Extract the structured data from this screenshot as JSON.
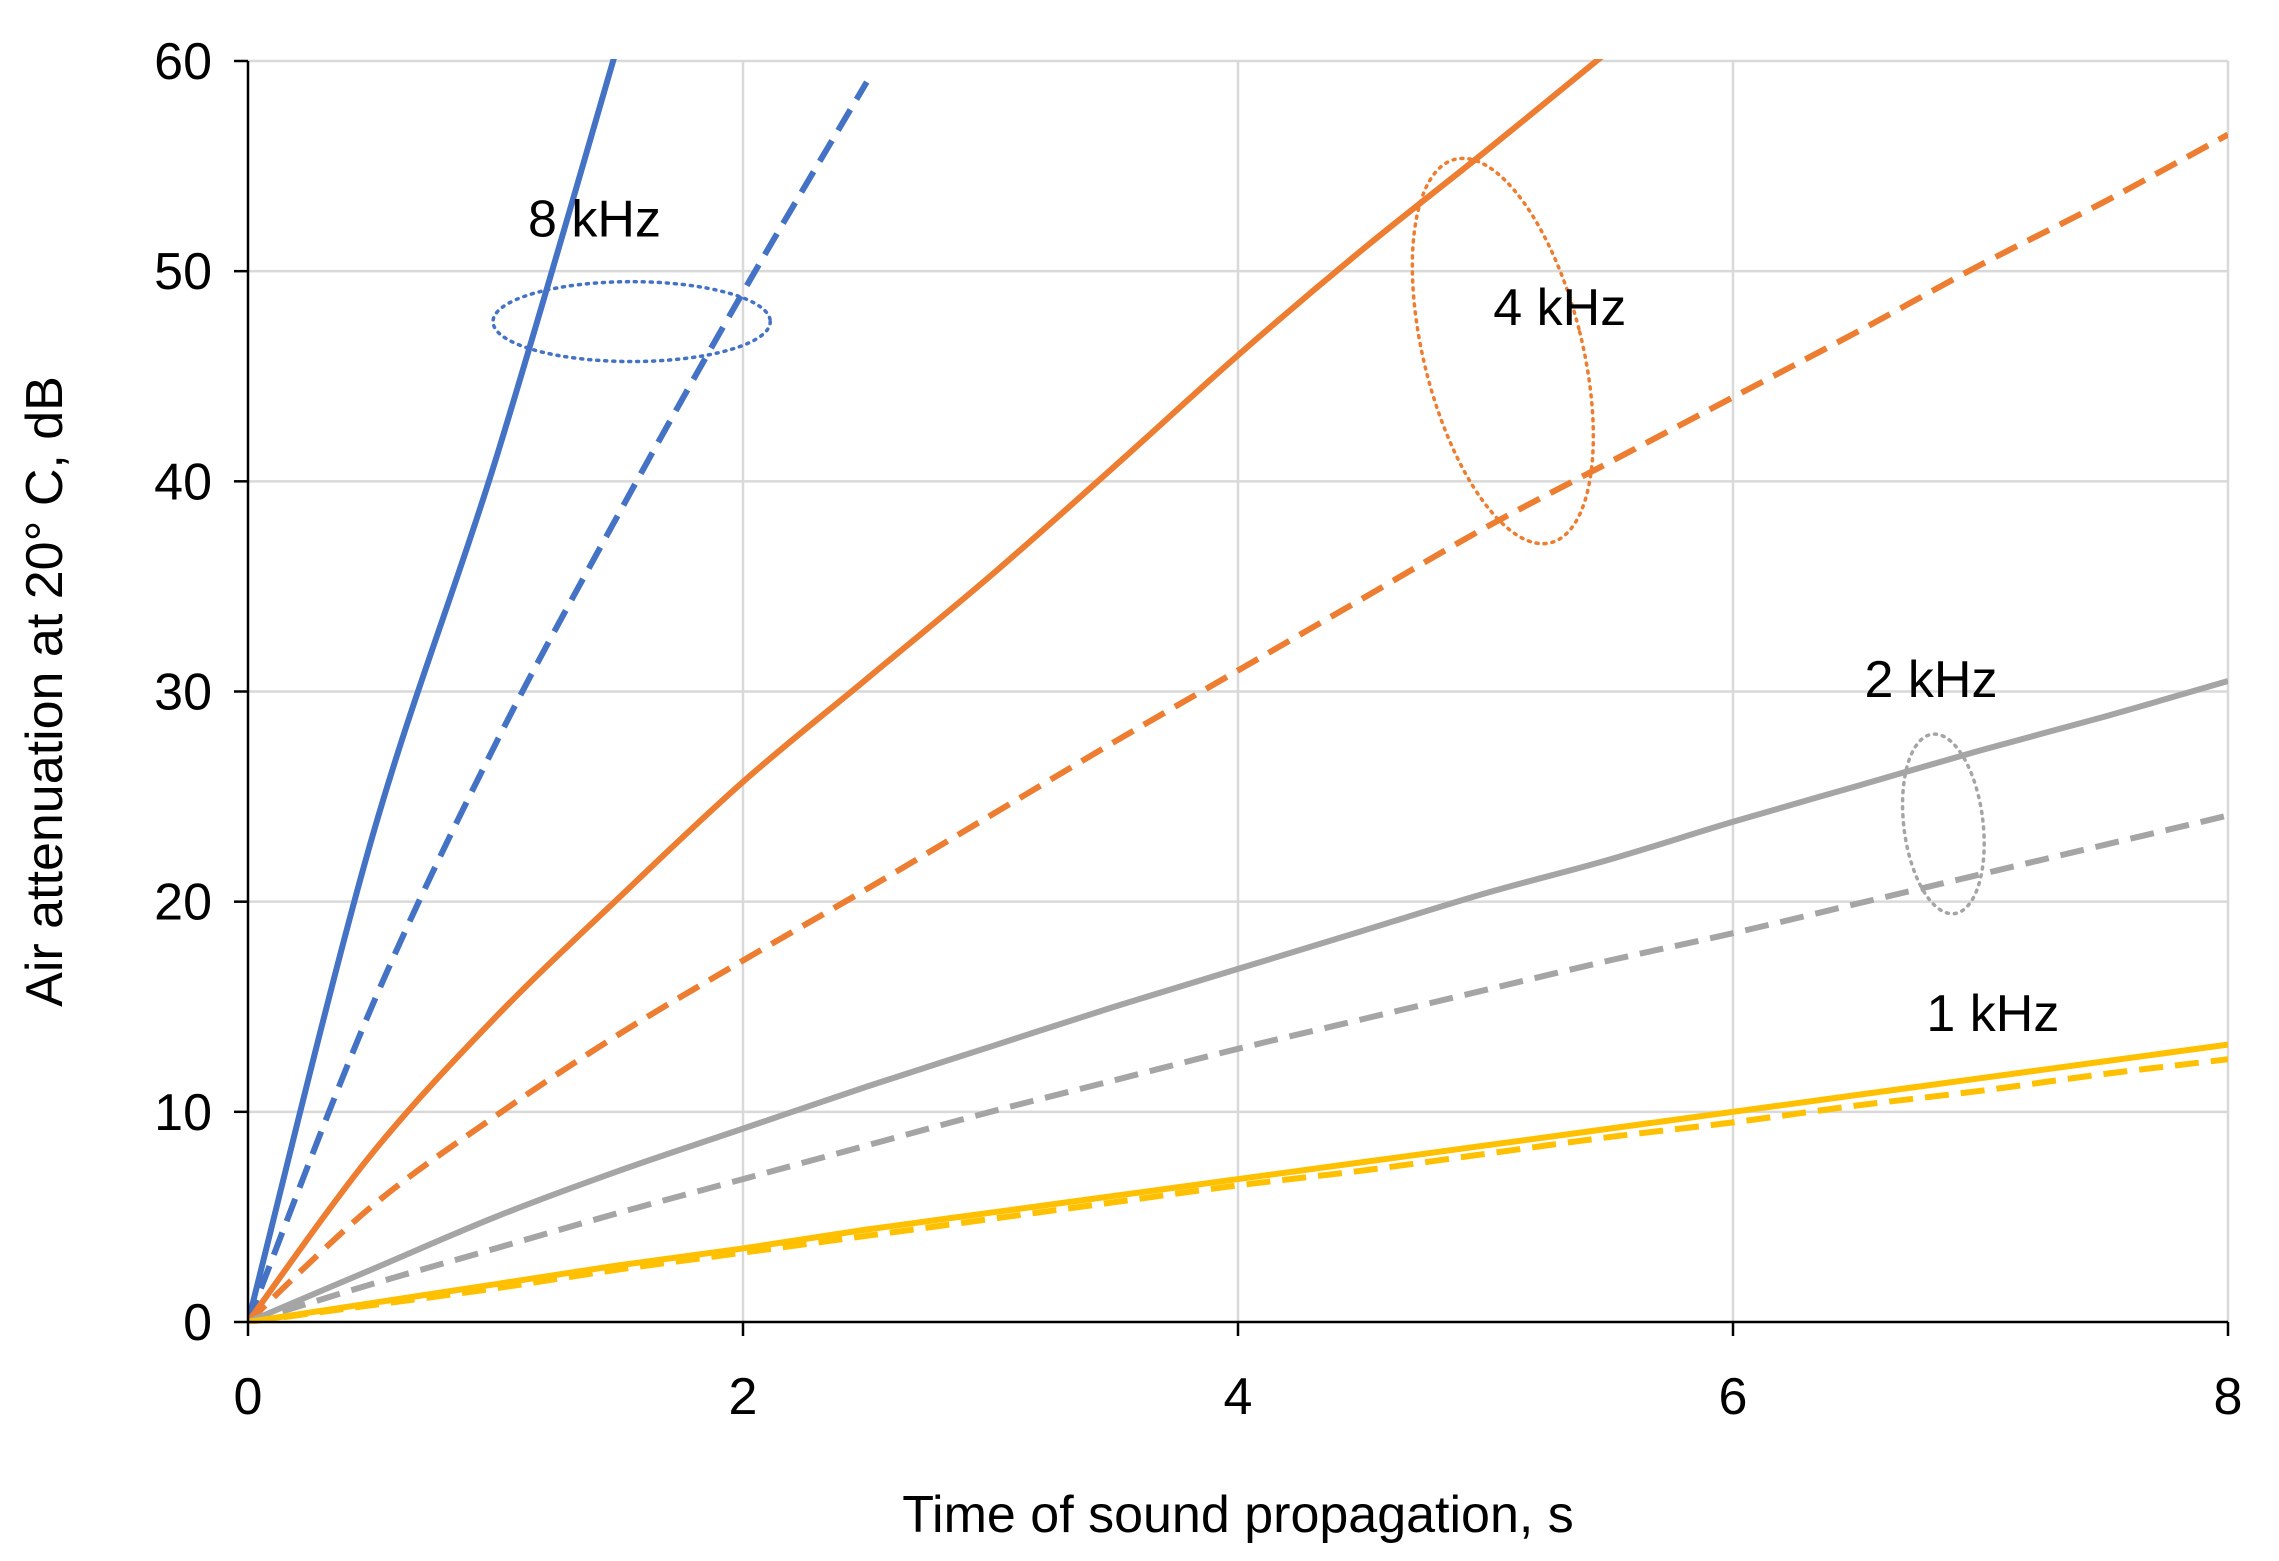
{
  "chart_data": {
    "type": "line",
    "title": "",
    "xlabel": "Time of sound propagation, s",
    "ylabel": "Air attenuation at  20° C, dB",
    "xlim": [
      0,
      8
    ],
    "ylim": [
      0,
      60
    ],
    "xticks": [
      0,
      2,
      4,
      6,
      8
    ],
    "yticks": [
      0,
      10,
      20,
      30,
      40,
      50,
      60
    ],
    "grid": true,
    "legend": "none",
    "x": [
      0,
      0.5,
      1,
      1.5,
      2,
      2.5,
      3,
      3.5,
      4,
      4.5,
      5,
      5.5,
      6,
      6.5,
      7,
      7.5,
      8
    ],
    "series": [
      {
        "name": "8 kHz solid",
        "group": "8 kHz",
        "dash": false,
        "color": "#4472C4",
        "values": [
          0,
          23,
          41,
          61,
          null,
          null,
          null,
          null,
          null,
          null,
          null,
          null,
          null,
          null,
          null,
          null,
          null
        ]
      },
      {
        "name": "8 kHz dashed",
        "group": "8 kHz",
        "dash": true,
        "color": "#4472C4",
        "values": [
          0,
          15,
          27.5,
          38.5,
          49,
          59,
          null,
          null,
          null,
          null,
          null,
          null,
          null,
          null,
          null,
          null,
          null
        ]
      },
      {
        "name": "4 kHz solid",
        "group": "4 kHz",
        "dash": false,
        "color": "#ED7D31",
        "values": [
          0,
          8,
          14.5,
          20.2,
          25.7,
          30.6,
          35.5,
          40.7,
          46,
          51,
          55.7,
          60.5,
          null,
          null,
          null,
          null,
          null
        ]
      },
      {
        "name": "4 kHz dashed",
        "group": "4 kHz",
        "dash": true,
        "color": "#ED7D31",
        "values": [
          0,
          5.5,
          9.8,
          13.7,
          17.2,
          20.6,
          24.1,
          27.6,
          31,
          34.4,
          37.8,
          40.9,
          44,
          47.1,
          50.3,
          53.3,
          56.5
        ]
      },
      {
        "name": "2 kHz solid",
        "group": "2 kHz",
        "dash": false,
        "color": "#A5A5A5",
        "values": [
          0,
          2.5,
          5,
          7.2,
          9.2,
          11.2,
          13.1,
          15,
          16.8,
          18.6,
          20.4,
          22,
          23.8,
          25.5,
          27.2,
          28.8,
          30.5
        ]
      },
      {
        "name": "2 kHz dashed",
        "group": "2 kHz",
        "dash": true,
        "color": "#A5A5A5",
        "values": [
          0,
          1.8,
          3.5,
          5.2,
          6.8,
          8.4,
          10,
          11.5,
          13,
          14.4,
          15.8,
          17.2,
          18.5,
          19.9,
          21.3,
          22.7,
          24.1
        ]
      },
      {
        "name": "1 kHz solid",
        "group": "1 kHz",
        "dash": false,
        "color": "#FFC000",
        "values": [
          0,
          0.9,
          1.8,
          2.7,
          3.5,
          4.4,
          5.2,
          6,
          6.8,
          7.6,
          8.4,
          9.2,
          10,
          10.8,
          11.6,
          12.4,
          13.2
        ]
      },
      {
        "name": "1 kHz dashed",
        "group": "1 kHz",
        "dash": true,
        "color": "#FFC000",
        "values": [
          0,
          0.8,
          1.6,
          2.5,
          3.3,
          4.1,
          4.9,
          5.7,
          6.5,
          7.2,
          8,
          8.8,
          9.5,
          10.3,
          11,
          11.8,
          12.5
        ]
      }
    ],
    "annotations": [
      {
        "text": "8 kHz",
        "x": 1.4,
        "y": 52.5
      },
      {
        "text": "4 kHz",
        "x": 5.3,
        "y": 48.3
      },
      {
        "text": "2 kHz",
        "x": 6.8,
        "y": 30.6
      },
      {
        "text": "1 kHz",
        "x": 7.05,
        "y": 14.7
      }
    ],
    "group_ellipses": [
      {
        "group": "8 kHz",
        "color": "#4472C4",
        "cx": 1.55,
        "cy": 47.6,
        "rx": 0.56,
        "ry": 1.9,
        "angle": 0
      },
      {
        "group": "4 kHz",
        "color": "#ED7D31",
        "cx": 5.07,
        "cy": 46.2,
        "rx": 0.32,
        "ry": 9.4,
        "angle": -14
      },
      {
        "group": "2 kHz",
        "color": "#A5A5A5",
        "cx": 6.85,
        "cy": 23.7,
        "rx": 0.16,
        "ry": 4.3,
        "angle": -7
      }
    ]
  }
}
